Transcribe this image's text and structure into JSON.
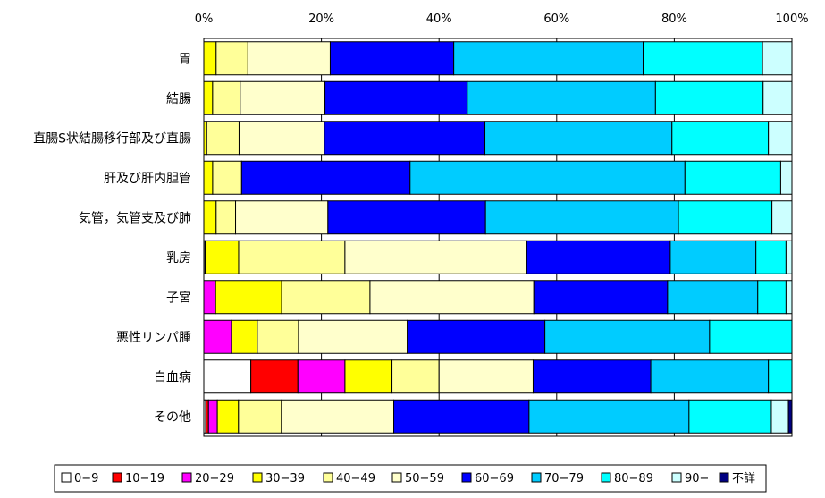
{
  "chart_data": {
    "type": "bar",
    "orientation": "horizontal",
    "stacked": "percent",
    "title": "",
    "xlabel": "",
    "ylabel": "",
    "xlim": [
      0,
      100
    ],
    "x_tick_labels": [
      "0%",
      "20%",
      "40%",
      "60%",
      "80%",
      "100%"
    ],
    "grid": "vertical",
    "legend_position": "bottom",
    "categories": [
      "胃",
      "結腸",
      "直腸S状結腸移行部及び直腸",
      "肝及び肝内胆管",
      "気管，気管支及び肺",
      "乳房",
      "子宮",
      "悪性リンパ腫",
      "白血病",
      "その他"
    ],
    "series": [
      {
        "name": "0−9",
        "color": "#FFFFFF",
        "values": [
          0,
          0,
          0,
          0,
          0,
          0.2,
          0,
          0,
          8,
          0.3
        ]
      },
      {
        "name": "10−19",
        "color": "#FF0000",
        "values": [
          0,
          0,
          0,
          0,
          0,
          0,
          0,
          0,
          8,
          0.5
        ]
      },
      {
        "name": "20−29",
        "color": "#FF00FF",
        "values": [
          0,
          0,
          0,
          0,
          0,
          0.1,
          2,
          4.7,
          8,
          1.5
        ]
      },
      {
        "name": "30−39",
        "color": "#FFFF00",
        "values": [
          2.1,
          1.5,
          0.5,
          1.5,
          2.1,
          5.6,
          11.2,
          4.4,
          8,
          3.6
        ]
      },
      {
        "name": "40−49",
        "color": "#FFFF99",
        "values": [
          5.4,
          4.7,
          5.5,
          4.9,
          3.3,
          18.0,
          15.0,
          7.0,
          8,
          7.3
        ]
      },
      {
        "name": "50−59",
        "color": "#FFFFCC",
        "values": [
          14.0,
          14.4,
          14.5,
          0,
          15.7,
          30.8,
          27.8,
          18.5,
          16,
          19.1
        ]
      },
      {
        "name": "60−69",
        "color": "#0000FF",
        "values": [
          21.0,
          24.2,
          27.3,
          28.5,
          26.8,
          24.3,
          22.7,
          23.4,
          20,
          23.0
        ]
      },
      {
        "name": "70−79",
        "color": "#00CCFF",
        "values": [
          32.2,
          32.0,
          31.8,
          46.5,
          32.8,
          14.5,
          15.3,
          28.0,
          20,
          27.2
        ]
      },
      {
        "name": "80−89",
        "color": "#00FFFF",
        "values": [
          20.3,
          18.3,
          16.4,
          16.2,
          15.9,
          5.1,
          4.8,
          14.0,
          4,
          14.0
        ]
      },
      {
        "name": "90−",
        "color": "#CCFFFF",
        "values": [
          5.0,
          4.9,
          4.0,
          1.9,
          3.4,
          1.0,
          1.0,
          0,
          0,
          2.9
        ]
      },
      {
        "name": "不詳",
        "color": "#000080",
        "values": [
          0,
          0,
          0,
          0,
          0,
          0,
          0,
          0,
          0,
          0.6
        ]
      }
    ]
  }
}
